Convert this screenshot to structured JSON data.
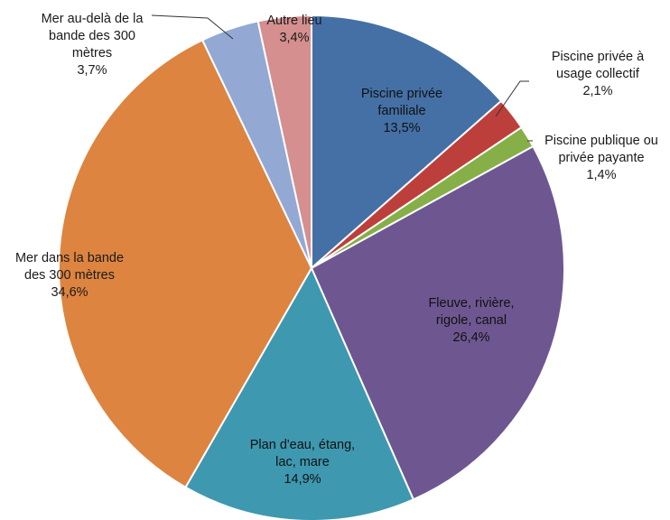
{
  "chart_data": {
    "type": "pie",
    "title": "",
    "unit": "%",
    "slices": [
      {
        "label": [
          "Piscine privée",
          "familiale"
        ],
        "value": 13.5,
        "value_label": "13,5%",
        "color": "#4470A6"
      },
      {
        "label": [
          "Piscine privée à",
          "usage collectif"
        ],
        "value": 2.1,
        "value_label": "2,1%",
        "color": "#BD3F3B"
      },
      {
        "label": [
          "Piscine publique ou",
          "privée payante"
        ],
        "value": 1.4,
        "value_label": "1,4%",
        "color": "#86AF47"
      },
      {
        "label": [
          "Fleuve, rivière,",
          "rigole, canal"
        ],
        "value": 26.4,
        "value_label": "26,4%",
        "color": "#6E5791"
      },
      {
        "label": [
          "Plan d'eau, étang,",
          "lac, mare"
        ],
        "value": 14.9,
        "value_label": "14,9%",
        "color": "#3E98B0"
      },
      {
        "label": [
          "Mer dans la bande",
          "des 300 mètres"
        ],
        "value": 34.6,
        "value_label": "34,6%",
        "color": "#DD8440"
      },
      {
        "label": [
          "Mer au-delà de la",
          "bande des 300",
          "mètres"
        ],
        "value": 3.7,
        "value_label": "3,7%",
        "color": "#93A9D4"
      },
      {
        "label": [
          "Autre lieu"
        ],
        "value": 3.4,
        "value_label": "3,4%",
        "color": "#D48F8E"
      }
    ]
  }
}
